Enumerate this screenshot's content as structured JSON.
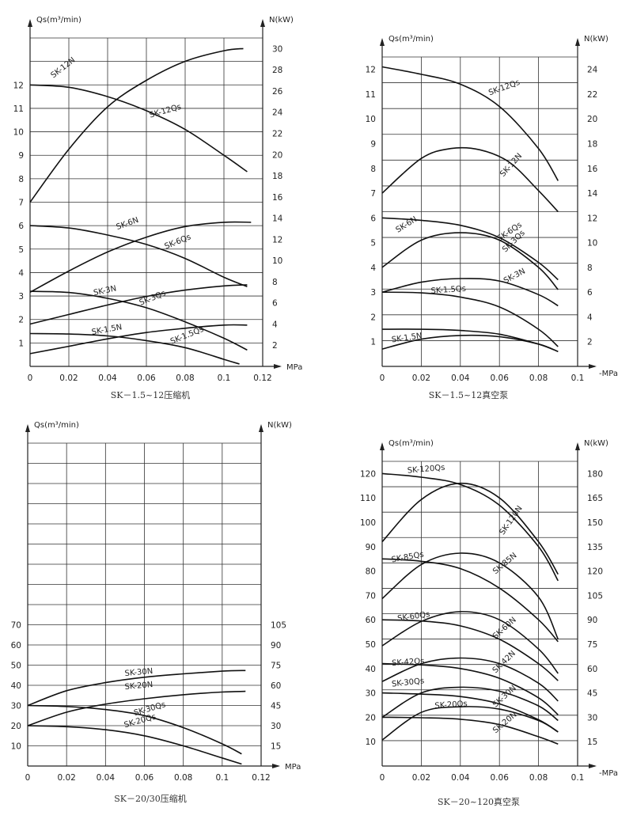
{
  "chart_data": [
    {
      "type": "line",
      "caption": "SK－1.5~12压缩机",
      "ylabel": "Qs(m³/min)",
      "y2label": "N(kW)",
      "xunit": "MPa",
      "xlim": [
        0,
        0.12
      ],
      "xticks": [
        "0",
        "0.02",
        "0.04",
        "0.06",
        "0.08",
        "0.1",
        "0.12"
      ],
      "ylim": [
        0,
        14
      ],
      "yticks": [
        "1",
        "2",
        "3",
        "4",
        "5",
        "6",
        "7",
        "8",
        "9",
        "10",
        "11",
        "12"
      ],
      "y2lim": [
        0,
        31
      ],
      "y2ticks": [
        "2",
        "4",
        "6",
        "8",
        "10",
        "12",
        "14",
        "16",
        "18",
        "20",
        "22",
        "24",
        "26",
        "28",
        "30"
      ],
      "series": [
        {
          "name": "SK-12N",
          "axis": "right",
          "x": [
            0,
            0.02,
            0.04,
            0.06,
            0.08,
            0.1,
            0.11
          ],
          "y": [
            15.5,
            20.5,
            24.5,
            27.0,
            28.8,
            29.8,
            30.0
          ]
        },
        {
          "name": "SK-12Qs",
          "axis": "left",
          "x": [
            0,
            0.02,
            0.04,
            0.06,
            0.08,
            0.1,
            0.112
          ],
          "y": [
            12.0,
            11.9,
            11.5,
            10.9,
            10.1,
            9.0,
            8.3
          ]
        },
        {
          "name": "SK-6N",
          "axis": "right",
          "x": [
            0,
            0.02,
            0.04,
            0.06,
            0.08,
            0.1,
            0.114
          ],
          "y": [
            7.0,
            9.0,
            10.8,
            12.2,
            13.2,
            13.6,
            13.6
          ]
        },
        {
          "name": "SK-6Qs",
          "axis": "left",
          "x": [
            0,
            0.02,
            0.04,
            0.06,
            0.08,
            0.1,
            0.112
          ],
          "y": [
            6.0,
            5.9,
            5.6,
            5.2,
            4.6,
            3.8,
            3.4
          ]
        },
        {
          "name": "SK-3N",
          "axis": "right",
          "x": [
            0,
            0.02,
            0.04,
            0.06,
            0.08,
            0.1,
            0.112
          ],
          "y": [
            4.0,
            4.9,
            5.8,
            6.6,
            7.2,
            7.6,
            7.7
          ]
        },
        {
          "name": "SK-3Qs",
          "axis": "left",
          "x": [
            0,
            0.02,
            0.04,
            0.06,
            0.08,
            0.1,
            0.112
          ],
          "y": [
            3.2,
            3.15,
            2.9,
            2.5,
            1.9,
            1.2,
            0.7
          ]
        },
        {
          "name": "SK-1.5N",
          "axis": "right",
          "x": [
            0,
            0.02,
            0.04,
            0.06,
            0.08,
            0.1,
            0.112
          ],
          "y": [
            1.2,
            1.9,
            2.6,
            3.2,
            3.6,
            3.9,
            3.9
          ]
        },
        {
          "name": "SK-1.5Qs",
          "axis": "left",
          "x": [
            0,
            0.02,
            0.04,
            0.06,
            0.08,
            0.1,
            0.108
          ],
          "y": [
            1.4,
            1.38,
            1.3,
            1.1,
            0.8,
            0.3,
            0.1
          ]
        }
      ]
    },
    {
      "type": "line",
      "caption": "SK－1.5~12真空泵",
      "ylabel": "Qs(m³/min)",
      "y2label": "N(kW)",
      "xunit": "-MPa",
      "xlim": [
        0,
        0.1
      ],
      "xticks": [
        "0",
        "0.02",
        "0.04",
        "0.06",
        "0.08",
        "0.1"
      ],
      "ylim": [
        0,
        12.5
      ],
      "yticks": [
        "1",
        "2",
        "3",
        "4",
        "5",
        "6",
        "7",
        "8",
        "9",
        "10",
        "11",
        "12"
      ],
      "y2lim": [
        0,
        25
      ],
      "y2ticks": [
        "2",
        "4",
        "6",
        "8",
        "10",
        "12",
        "14",
        "16",
        "18",
        "20",
        "22",
        "24"
      ],
      "series": [
        {
          "name": "SK-12Qs",
          "axis": "left",
          "x": [
            0,
            0.02,
            0.04,
            0.06,
            0.08,
            0.09
          ],
          "y": [
            12.1,
            11.8,
            11.4,
            10.5,
            8.8,
            7.5
          ]
        },
        {
          "name": "SK-12N",
          "axis": "right",
          "x": [
            0,
            0.02,
            0.035,
            0.05,
            0.065,
            0.08,
            0.09
          ],
          "y": [
            14.0,
            16.8,
            17.6,
            17.5,
            16.5,
            14.2,
            12.5
          ]
        },
        {
          "name": "SK-6Qs",
          "axis": "left",
          "x": [
            0,
            0.02,
            0.04,
            0.06,
            0.08,
            0.09
          ],
          "y": [
            6.0,
            5.9,
            5.7,
            5.2,
            4.2,
            3.5
          ]
        },
        {
          "name": "SK-6N",
          "axis": "right",
          "x": [
            0,
            0.02,
            0.04,
            0.06,
            0.08,
            0.09
          ],
          "y": [
            8.0,
            10.2,
            10.8,
            10.2,
            8.0,
            6.2
          ]
        },
        {
          "name": "SK-3N",
          "axis": "right",
          "x": [
            0,
            0.02,
            0.04,
            0.06,
            0.08,
            0.09
          ],
          "y": [
            6.0,
            6.8,
            7.1,
            6.9,
            5.8,
            4.9
          ]
        },
        {
          "name": "SK-3Qs",
          "axis": "left",
          "x": [
            0,
            0.02,
            0.04,
            0.06,
            0.08,
            0.09
          ],
          "y": [
            3.0,
            2.97,
            2.8,
            2.4,
            1.5,
            0.8
          ]
        },
        {
          "name": "SK-1.5Qs",
          "axis": "left",
          "x": [
            0,
            0.02,
            0.04,
            0.06,
            0.08,
            0.09
          ],
          "y": [
            1.5,
            1.5,
            1.45,
            1.3,
            0.9,
            0.6
          ]
        },
        {
          "name": "SK-1.5N",
          "axis": "right",
          "x": [
            0,
            0.02,
            0.04,
            0.06,
            0.08,
            0.09
          ],
          "y": [
            1.4,
            2.2,
            2.5,
            2.4,
            1.8,
            1.2
          ]
        }
      ]
    },
    {
      "type": "line",
      "caption": "SK－20/30压缩机",
      "ylabel": "Qs(m³/min)",
      "y2label": "N(kW)",
      "xunit": "MPa",
      "xlim": [
        0,
        0.12
      ],
      "xticks": [
        "0",
        "0.02",
        "0.04",
        "0.06",
        "0.08",
        "0.1",
        "0.12"
      ],
      "ylim": [
        0,
        160
      ],
      "yticks": [
        "10",
        "20",
        "30",
        "40",
        "50",
        "60",
        "70"
      ],
      "y2lim": [
        0,
        240
      ],
      "y2ticks": [
        "15",
        "30",
        "45",
        "60",
        "75",
        "90",
        "105"
      ],
      "series": [
        {
          "name": "SK-30N",
          "axis": "right",
          "x": [
            0,
            0.02,
            0.04,
            0.06,
            0.08,
            0.1,
            0.112
          ],
          "y": [
            45,
            56,
            62,
            66,
            68.5,
            70.5,
            71
          ]
        },
        {
          "name": "SK-20N",
          "axis": "right",
          "x": [
            0,
            0.02,
            0.04,
            0.06,
            0.08,
            0.1,
            0.112
          ],
          "y": [
            30,
            40,
            46,
            50,
            53,
            55,
            55.5
          ]
        },
        {
          "name": "SK-30Qs",
          "axis": "left",
          "x": [
            0,
            0.02,
            0.04,
            0.06,
            0.08,
            0.1,
            0.11
          ],
          "y": [
            30,
            29.5,
            28,
            25,
            19,
            11,
            6
          ]
        },
        {
          "name": "SK-20Qs",
          "axis": "left",
          "x": [
            0,
            0.02,
            0.04,
            0.06,
            0.08,
            0.1,
            0.11
          ],
          "y": [
            20,
            19.5,
            18,
            15,
            10,
            4,
            1
          ]
        }
      ]
    },
    {
      "type": "line",
      "caption": "SK－20~120真空泵",
      "ylabel": "Qs(m³/min)",
      "y2label": "N(kW)",
      "xunit": "-MPa",
      "xlim": [
        0,
        0.1
      ],
      "xticks": [
        "0",
        "0.02",
        "0.04",
        "0.06",
        "0.08",
        "0.1"
      ],
      "ylim": [
        0,
        125
      ],
      "yticks": [
        "10",
        "20",
        "30",
        "40",
        "50",
        "60",
        "70",
        "80",
        "90",
        "100",
        "110",
        "120"
      ],
      "y2lim": [
        0,
        187.5
      ],
      "y2ticks": [
        "15",
        "30",
        "45",
        "60",
        "75",
        "90",
        "105",
        "120",
        "135",
        "150",
        "165",
        "180"
      ],
      "series": [
        {
          "name": "SK-120Qs",
          "axis": "left",
          "x": [
            0,
            0.02,
            0.04,
            0.06,
            0.08,
            0.09
          ],
          "y": [
            120,
            118.5,
            115.5,
            107,
            90,
            76
          ]
        },
        {
          "name": "SK-120N",
          "axis": "right",
          "x": [
            0,
            0.02,
            0.04,
            0.06,
            0.08,
            0.09
          ],
          "y": [
            138,
            164,
            174,
            165,
            138,
            118
          ]
        },
        {
          "name": "SK-85Qs",
          "axis": "left",
          "x": [
            0,
            0.02,
            0.04,
            0.06,
            0.08,
            0.09
          ],
          "y": [
            85,
            84,
            81,
            73,
            60,
            51
          ]
        },
        {
          "name": "SK-85N",
          "axis": "right",
          "x": [
            0,
            0.02,
            0.04,
            0.06,
            0.08,
            0.09
          ],
          "y": [
            103,
            124,
            131,
            125,
            104,
            78
          ]
        },
        {
          "name": "SK-60Qs",
          "axis": "left",
          "x": [
            0,
            0.02,
            0.04,
            0.06,
            0.08,
            0.09
          ],
          "y": [
            60,
            59.5,
            57.5,
            52,
            42,
            35
          ]
        },
        {
          "name": "SK-60N",
          "axis": "right",
          "x": [
            0,
            0.02,
            0.04,
            0.06,
            0.08,
            0.09
          ],
          "y": [
            74,
            89,
            95,
            90,
            72,
            57
          ]
        },
        {
          "name": "SK-42Qs",
          "axis": "left",
          "x": [
            0,
            0.02,
            0.04,
            0.06,
            0.08,
            0.09
          ],
          "y": [
            42,
            41.5,
            40,
            36,
            28,
            21
          ]
        },
        {
          "name": "SK-42N",
          "axis": "right",
          "x": [
            0,
            0.02,
            0.04,
            0.06,
            0.08,
            0.09
          ],
          "y": [
            52,
            63,
            66.5,
            63,
            51,
            40
          ]
        },
        {
          "name": "SK-30Qs",
          "axis": "left",
          "x": [
            0,
            0.02,
            0.04,
            0.06,
            0.08,
            0.09
          ],
          "y": [
            30,
            29.5,
            28.5,
            25.5,
            19,
            14
          ]
        },
        {
          "name": "SK-30N",
          "axis": "right",
          "x": [
            0,
            0.02,
            0.04,
            0.06,
            0.08,
            0.09
          ],
          "y": [
            30,
            45,
            48.5,
            46,
            37,
            28
          ]
        },
        {
          "name": "SK-20Qs",
          "axis": "left",
          "x": [
            0,
            0.02,
            0.04,
            0.06,
            0.08,
            0.09
          ],
          "y": [
            20,
            19.8,
            19.2,
            17,
            12,
            9
          ]
        },
        {
          "name": "SK-20N",
          "axis": "right",
          "x": [
            0,
            0.02,
            0.04,
            0.06,
            0.08,
            0.09
          ],
          "y": [
            16,
            33,
            36.5,
            35,
            28,
            21
          ]
        }
      ]
    }
  ]
}
